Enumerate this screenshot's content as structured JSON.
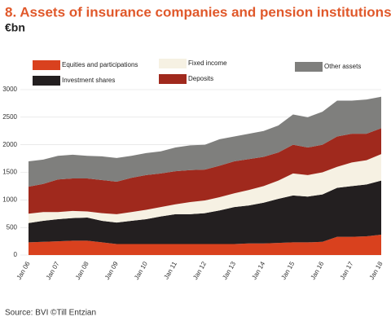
{
  "chart_data": {
    "type": "stacked_area",
    "title": "8. Assets of insurance companies and pension institutions",
    "subtitle": "€bn",
    "source": "Source: BVI ©Till Entzian",
    "categories": [
      "Jan 06",
      null,
      "Jan 07",
      null,
      "Jan 08",
      null,
      "Jan 09",
      null,
      "Jan 10",
      null,
      "Jan 11",
      null,
      "Jan 12",
      null,
      "Jan 13",
      null,
      "Jan 14",
      null,
      "Jan 15",
      null,
      "Jan 16",
      null,
      "Jan 17",
      null,
      "Jan 18"
    ],
    "series": [
      {
        "name": "Equities and participations",
        "color": "#d9411e",
        "values": [
          230,
          240,
          250,
          260,
          260,
          230,
          200,
          200,
          200,
          200,
          200,
          200,
          200,
          200,
          200,
          210,
          210,
          220,
          230,
          230,
          240,
          330,
          330,
          340,
          370
        ]
      },
      {
        "name": "Investment shares",
        "color": "#231f20",
        "values": [
          350,
          380,
          400,
          410,
          420,
          390,
          390,
          420,
          450,
          500,
          540,
          540,
          560,
          610,
          670,
          690,
          740,
          800,
          850,
          830,
          860,
          890,
          920,
          940,
          980
        ]
      },
      {
        "name": "Fixed income",
        "color": "#f6f1e3",
        "values": [
          170,
          160,
          130,
          130,
          110,
          140,
          150,
          160,
          170,
          170,
          180,
          220,
          230,
          240,
          250,
          280,
          300,
          330,
          400,
          390,
          400,
          380,
          430,
          440,
          480
        ]
      },
      {
        "name": "Deposits",
        "color": "#a0291d",
        "values": [
          490,
          510,
          590,
          590,
          600,
          600,
          590,
          620,
          630,
          610,
          600,
          580,
          560,
          570,
          580,
          560,
          530,
          510,
          520,
          500,
          500,
          550,
          520,
          480,
          470
        ]
      },
      {
        "name": "Other assets",
        "color": "#7f7f7d",
        "values": [
          460,
          440,
          430,
          430,
          410,
          430,
          430,
          400,
          400,
          400,
          430,
          450,
          450,
          480,
          450,
          460,
          470,
          490,
          550,
          550,
          600,
          650,
          600,
          620,
          570
        ]
      }
    ],
    "ylim": [
      0,
      3000
    ],
    "yticks": [
      0,
      500,
      1000,
      1500,
      2000,
      2500,
      3000
    ],
    "grid": true
  }
}
